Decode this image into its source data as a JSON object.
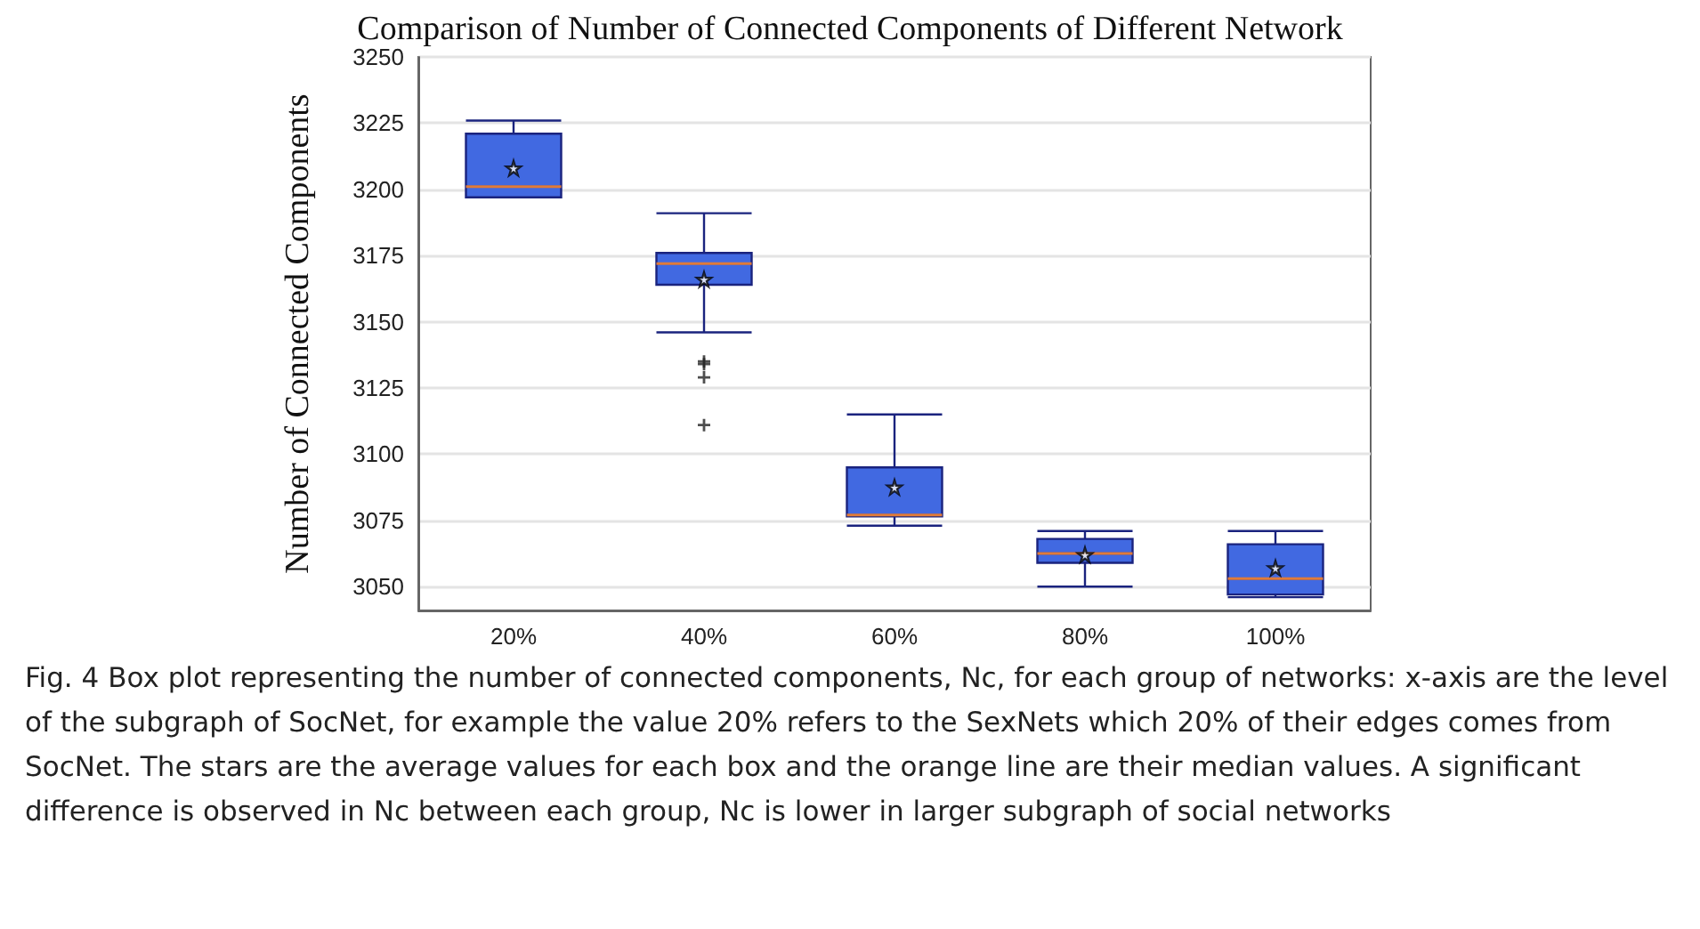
{
  "chart_data": {
    "type": "box",
    "title": "Comparison of Number of Connected Components of Different Network",
    "ylabel": "Number of Connected Components",
    "categories": [
      "20%",
      "40%",
      "60%",
      "80%",
      "100%"
    ],
    "series": [
      {
        "color": "#4169e1",
        "boxes": [
          {
            "low": 3197,
            "q1": 3197,
            "median": 3201,
            "q3": 3221,
            "high": 3226,
            "mean": 3208
          },
          {
            "low": 3146,
            "q1": 3164,
            "median": 3172,
            "q3": 3176,
            "high": 3191,
            "mean": 3166,
            "outliers": [
              3135,
              3134,
              3129,
              3111
            ]
          },
          {
            "low": 3073,
            "q1": 3076.5,
            "median": 3077,
            "q3": 3095,
            "high": 3115,
            "mean": 3087.5
          },
          {
            "low": 3050,
            "q1": 3059,
            "median": 3062.5,
            "q3": 3068,
            "high": 3071,
            "mean": 3062
          },
          {
            "low": 3046,
            "q1": 3047,
            "median": 3053,
            "q3": 3066,
            "high": 3071,
            "mean": 3057
          }
        ]
      }
    ],
    "ylim": [
      3041,
      3250
    ],
    "yticks": [
      3050,
      3075,
      3100,
      3125,
      3150,
      3175,
      3200,
      3225,
      3250
    ],
    "grid": "y",
    "marker": "star",
    "annotations": [
      "Fig. 4  Box plot representing the number of connected components, Nc, for each group of networks: x-axis are the level of the subgraph of SocNet, for example the value 20% refers to the SexNets which 20% of their edges comes from SocNet. The stars are the average values for each box and the orange line are their median values. A significant difference is observed in Nc between each group, Nc is lower in larger subgraph of social networks"
    ]
  }
}
